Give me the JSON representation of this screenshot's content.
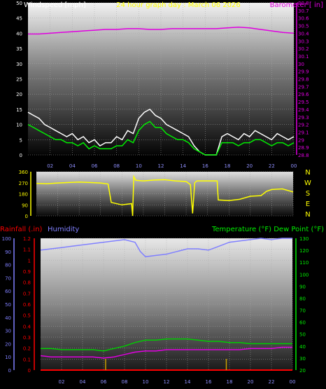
{
  "chart_data": [
    {
      "type": "line",
      "title": "24 hour graph day : March 06 2026",
      "left_label": "Windspeed [mph]",
      "right_label": "Barometer [ in]",
      "x_ticks": [
        "02",
        "04",
        "06",
        "08",
        "10",
        "12",
        "14",
        "16",
        "18",
        "20",
        "22",
        "00"
      ],
      "y_left_ticks": [
        "0",
        "5",
        "10",
        "15",
        "20",
        "25",
        "30",
        "35",
        "40",
        "45",
        "50"
      ],
      "y_left_range": [
        0,
        50
      ],
      "y_right_ticks": [
        "28.8",
        "28.9",
        "29",
        "29.1",
        "29.2",
        "29.3",
        "29.4",
        "29.5",
        "29.6",
        "29.7",
        "29.8",
        "29.9",
        "30",
        "30.1",
        "30.2",
        "30.3",
        "30.4",
        "30.5",
        "30.6",
        "30.7",
        "30.8"
      ],
      "y_right_range": [
        28.8,
        30.8
      ],
      "series": [
        {
          "name": "Barometer",
          "color": "#e000e0",
          "axis": "right",
          "x_hours": [
            0,
            1,
            2,
            3,
            4,
            5,
            6,
            7,
            8,
            9,
            10,
            11,
            12,
            13,
            14,
            15,
            16,
            17,
            18,
            19,
            20,
            21,
            22,
            23,
            24
          ],
          "values": [
            30.39,
            30.39,
            30.4,
            30.41,
            30.42,
            30.43,
            30.44,
            30.45,
            30.45,
            30.46,
            30.46,
            30.45,
            30.45,
            30.46,
            30.46,
            30.46,
            30.46,
            30.46,
            30.47,
            30.48,
            30.47,
            30.45,
            30.43,
            30.41,
            30.4
          ]
        },
        {
          "color": "#ffffff",
          "axis": "left",
          "x_hours": [
            0,
            0.5,
            1,
            1.5,
            2,
            2.5,
            3,
            3.5,
            4,
            4.5,
            5,
            5.5,
            6,
            6.5,
            7,
            7.5,
            8,
            8.5,
            9,
            9.5,
            10,
            10.5,
            11,
            11.5,
            12,
            12.5,
            13,
            13.5,
            14,
            14.5,
            15,
            15.5,
            16,
            16.5,
            17,
            17.5,
            18,
            18.5,
            19,
            19.5,
            20,
            20.5,
            21,
            21.5,
            22,
            22.5,
            23,
            23.5,
            24
          ],
          "values": [
            14,
            13,
            12,
            10,
            9,
            8,
            7,
            6,
            7,
            5,
            6,
            4,
            5,
            3,
            4,
            4,
            6,
            5,
            8,
            7,
            12,
            14,
            15,
            13,
            12,
            10,
            9,
            8,
            7,
            6,
            3,
            1,
            0,
            0,
            0,
            6,
            7,
            6,
            5,
            7,
            6,
            8,
            7,
            6,
            5,
            7,
            6,
            5,
            6
          ]
        },
        {
          "color": "#00ee00",
          "axis": "left",
          "x_hours": [
            0,
            0.5,
            1,
            1.5,
            2,
            2.5,
            3,
            3.5,
            4,
            4.5,
            5,
            5.5,
            6,
            6.5,
            7,
            7.5,
            8,
            8.5,
            9,
            9.5,
            10,
            10.5,
            11,
            11.5,
            12,
            12.5,
            13,
            13.5,
            14,
            14.5,
            15,
            15.5,
            16,
            16.5,
            17,
            17.5,
            18,
            18.5,
            19,
            19.5,
            20,
            20.5,
            21,
            21.5,
            22,
            22.5,
            23,
            23.5,
            24
          ],
          "values": [
            10,
            9,
            8,
            7,
            6,
            5,
            5,
            4,
            4,
            3,
            4,
            2,
            3,
            2,
            2,
            2,
            3,
            3,
            5,
            4,
            8,
            10,
            11,
            9,
            9,
            7,
            6,
            5,
            5,
            4,
            2,
            1,
            0,
            0,
            0,
            4,
            4,
            4,
            3,
            4,
            4,
            5,
            5,
            4,
            3,
            4,
            4,
            3,
            4
          ]
        }
      ]
    },
    {
      "type": "line",
      "y_left_ticks": [
        "0",
        "90",
        "180",
        "270",
        "360"
      ],
      "y_left_range": [
        0,
        360
      ],
      "right_ticks": [
        "N",
        "W",
        "S",
        "E",
        "N"
      ],
      "series": [
        {
          "color": "#ffff00",
          "x_hours": [
            0,
            1,
            2,
            3,
            4,
            5,
            6,
            6.7,
            7,
            8,
            8.9,
            9,
            9.1,
            9.3,
            10,
            11,
            12,
            13,
            14,
            14.4,
            14.6,
            14.8,
            15,
            16,
            16.9,
            17,
            18,
            19,
            20,
            21,
            21.5,
            22,
            23,
            24
          ],
          "values": [
            265,
            262,
            268,
            272,
            276,
            272,
            268,
            260,
            110,
            90,
            100,
            0,
            320,
            290,
            285,
            292,
            295,
            285,
            280,
            255,
            20,
            270,
            285,
            285,
            285,
            130,
            125,
            135,
            160,
            165,
            200,
            215,
            220,
            195
          ]
        }
      ]
    },
    {
      "type": "line",
      "left1_label": "Rainfall (.in)",
      "left2_label": "Humidity",
      "right_label": "Temperature (°F) Dew Point (°F)",
      "x_ticks": [
        "02",
        "04",
        "06",
        "08",
        "10",
        "12",
        "14",
        "16",
        "18",
        "20",
        "22",
        "00"
      ],
      "rain_ticks": [
        "0",
        "0.1",
        "0.2",
        "0.3",
        "0.4",
        "0.5",
        "0.6",
        "0.7",
        "0.8",
        "0.9",
        "1",
        "1.1",
        "1.2"
      ],
      "rain_range": [
        0,
        1.2
      ],
      "humidity_ticks": [
        "0",
        "10",
        "20",
        "30",
        "40",
        "50",
        "60",
        "70",
        "80",
        "90",
        "100"
      ],
      "humidity_range": [
        0,
        100
      ],
      "temp_ticks": [
        "20",
        "30",
        "40",
        "50",
        "60",
        "70",
        "80",
        "90",
        "100",
        "110",
        "120",
        "130"
      ],
      "temp_range": [
        20,
        130
      ],
      "series": [
        {
          "name": "Humidity",
          "color": "#8080ff",
          "axis": "humidity",
          "x_hours": [
            0,
            1,
            2,
            3,
            4,
            5,
            6,
            7,
            8,
            9,
            9.5,
            10,
            11,
            12,
            13,
            14,
            15,
            16,
            17,
            18,
            19,
            20,
            21,
            22,
            23,
            24
          ],
          "values": [
            91,
            92,
            93,
            94,
            95,
            96,
            97,
            98,
            99,
            97,
            90,
            86,
            87,
            88,
            90,
            92,
            92,
            91,
            94,
            97,
            98,
            99,
            100,
            99,
            100,
            100
          ]
        },
        {
          "name": "Temperature",
          "color": "#00cc00",
          "axis": "temp",
          "x_hours": [
            0,
            1,
            2,
            3,
            4,
            5,
            6,
            7,
            8,
            9,
            10,
            11,
            12,
            13,
            14,
            15,
            16,
            17,
            18,
            19,
            20,
            21,
            22,
            23,
            24
          ],
          "values": [
            38,
            38,
            37,
            37,
            37,
            37,
            36,
            38,
            40,
            43,
            45,
            45,
            46,
            46,
            46,
            45,
            44,
            44,
            43,
            43,
            42,
            42,
            42,
            42,
            42
          ]
        },
        {
          "name": "Dew Point",
          "color": "#e000e0",
          "axis": "temp",
          "x_hours": [
            0,
            1,
            2,
            3,
            4,
            5,
            6,
            7,
            8,
            9,
            10,
            11,
            12,
            13,
            14,
            15,
            16,
            17,
            18,
            19,
            20,
            21,
            22,
            23,
            24
          ],
          "values": [
            32,
            31,
            31,
            31,
            31,
            31,
            30,
            31,
            33,
            35,
            36,
            36,
            37,
            37,
            37,
            37,
            37,
            37,
            37,
            37,
            38,
            38,
            38,
            39,
            39
          ]
        },
        {
          "name": "Rainfall",
          "color": "#ff0000",
          "axis": "rain",
          "x_hours": [
            0,
            24
          ],
          "values": [
            0,
            0
          ]
        }
      ],
      "tick_marks_hours": [
        6.2,
        17.7
      ],
      "tick_marks_color": "#c8a000"
    }
  ],
  "colors": {
    "left_title": "#ffffff",
    "title": "#ffff00",
    "barometer": "#e000e0",
    "direction": "#ffff00",
    "rain": "#ff0000",
    "humidity": "#8080ff",
    "temperature": "#00ee00"
  }
}
